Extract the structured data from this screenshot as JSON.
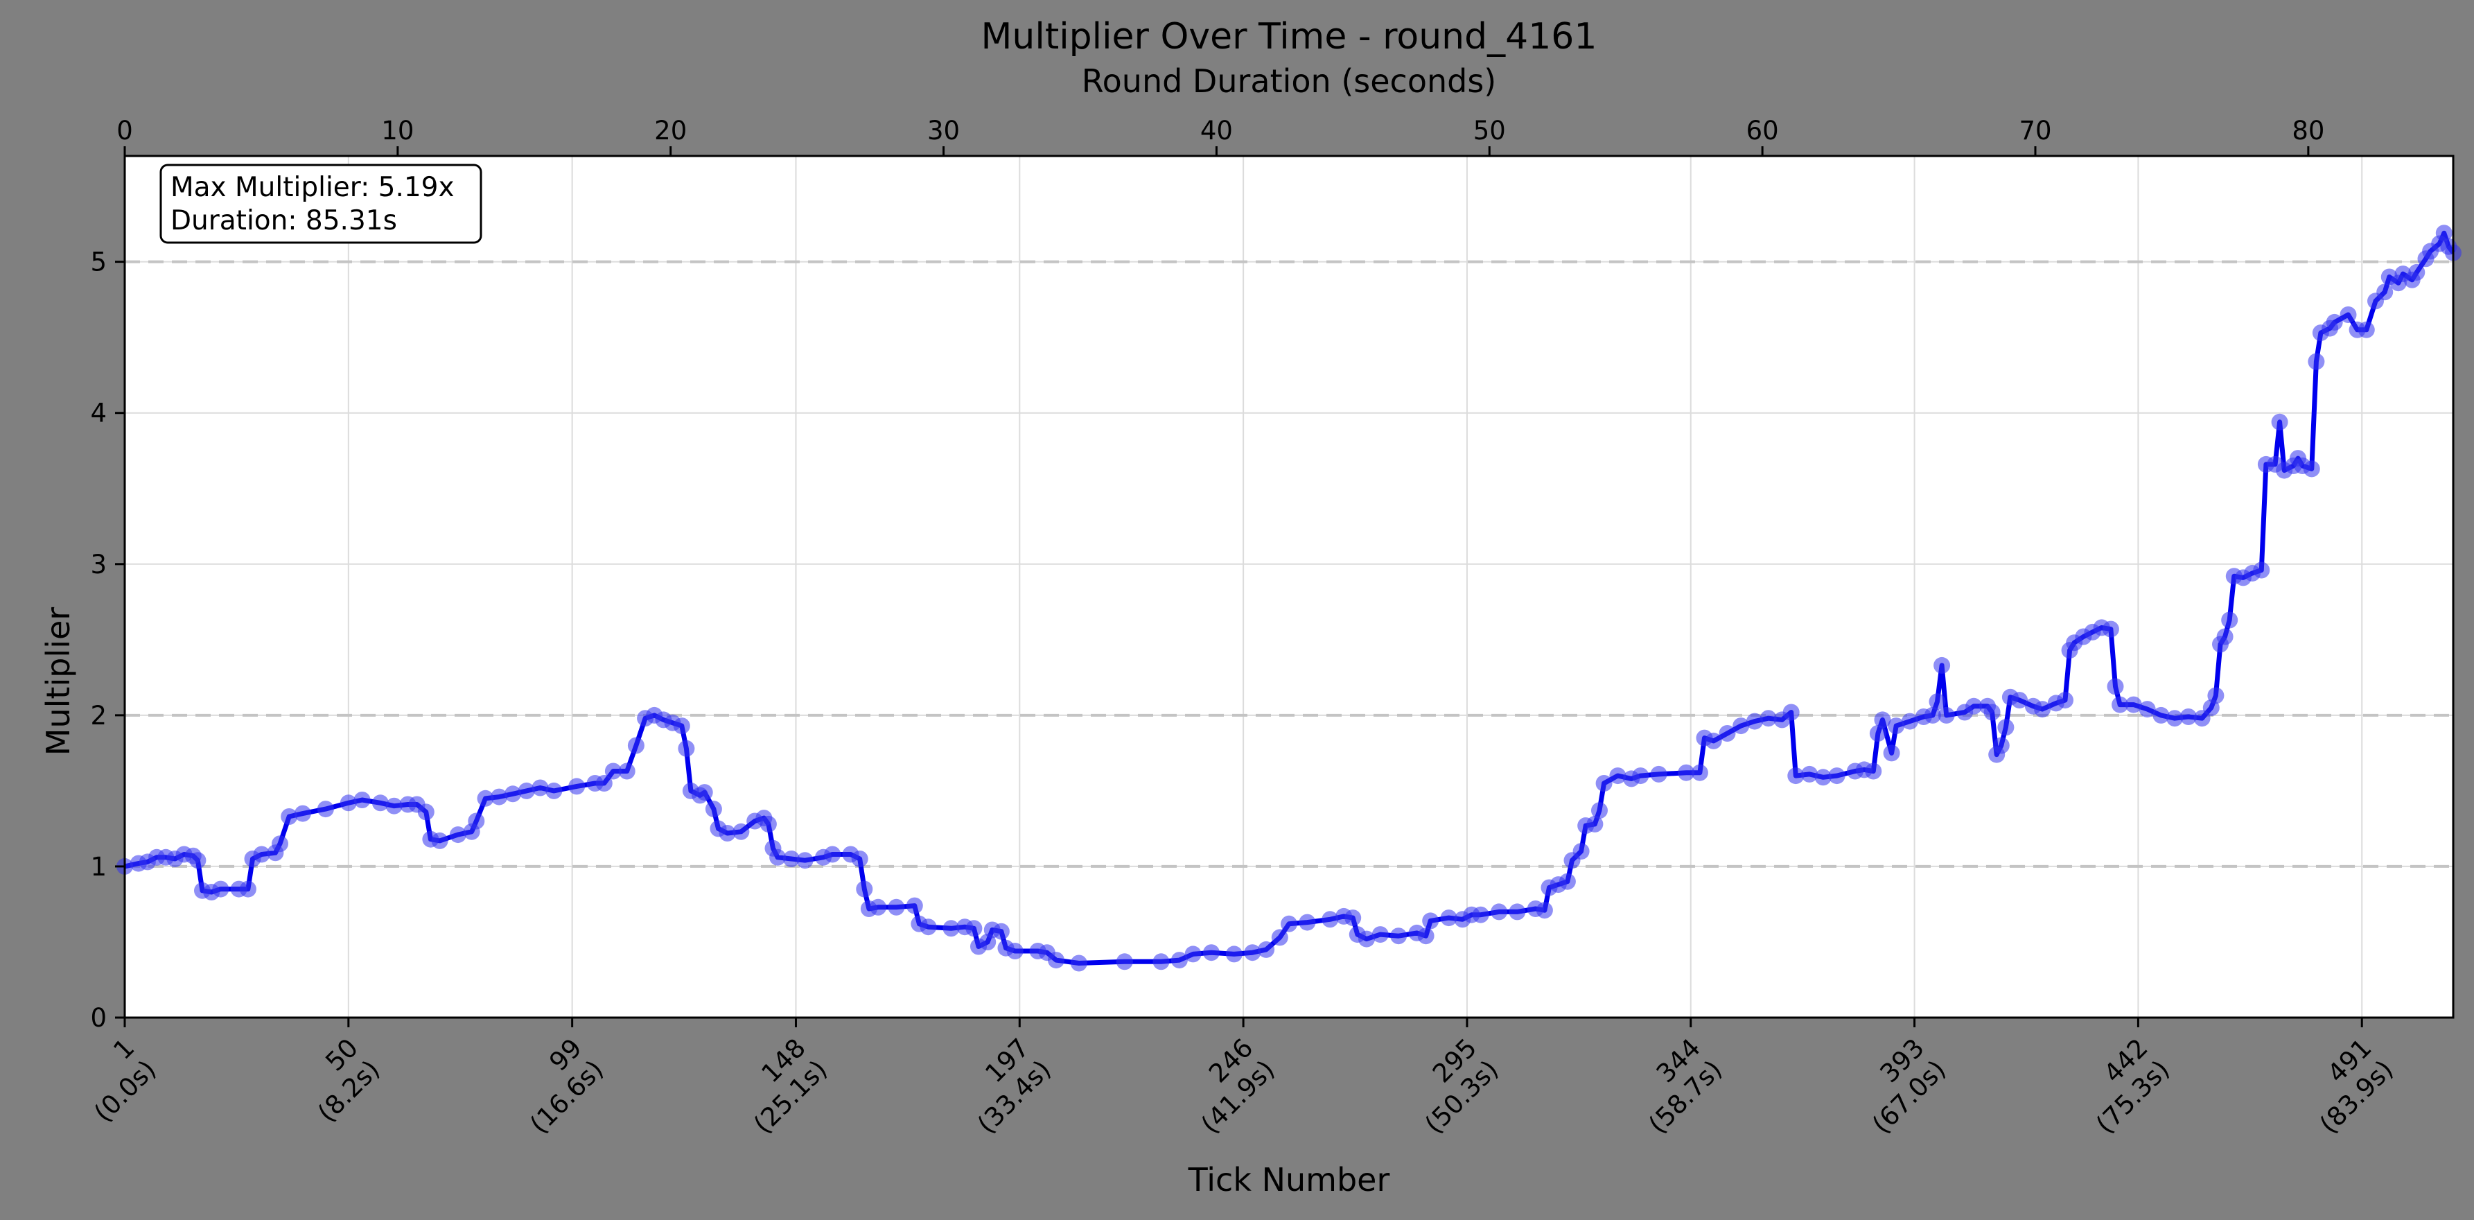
{
  "chart_data": {
    "type": "line",
    "title": "Multiplier Over Time - round_4161",
    "xlabel": "Tick Number",
    "ylabel": "Multiplier",
    "x2label": "Round Duration (seconds)",
    "xlim": [
      1,
      511
    ],
    "ylim": [
      0,
      5.7
    ],
    "x2lim": [
      0,
      85.31
    ],
    "x_ticks": [
      {
        "tick": 1,
        "label": "1",
        "sublabel": "(0.0s)"
      },
      {
        "tick": 50,
        "label": "50",
        "sublabel": "(8.2s)"
      },
      {
        "tick": 99,
        "label": "99",
        "sublabel": "(16.6s)"
      },
      {
        "tick": 148,
        "label": "148",
        "sublabel": "(25.1s)"
      },
      {
        "tick": 197,
        "label": "197",
        "sublabel": "(33.4s)"
      },
      {
        "tick": 246,
        "label": "246",
        "sublabel": "(41.9s)"
      },
      {
        "tick": 295,
        "label": "295",
        "sublabel": "(50.3s)"
      },
      {
        "tick": 344,
        "label": "344",
        "sublabel": "(58.7s)"
      },
      {
        "tick": 393,
        "label": "393",
        "sublabel": "(67.0s)"
      },
      {
        "tick": 442,
        "label": "442",
        "sublabel": "(75.3s)"
      },
      {
        "tick": 491,
        "label": "491",
        "sublabel": "(83.9s)"
      }
    ],
    "x2_ticks": [
      0,
      10,
      20,
      30,
      40,
      50,
      60,
      70,
      80
    ],
    "y_ticks": [
      0,
      1,
      2,
      3,
      4,
      5
    ],
    "reference_lines": [
      1,
      2,
      5
    ],
    "grid": true,
    "series": [
      {
        "color": "#0000ee",
        "points": [
          [
            1,
            1.0
          ],
          [
            4,
            1.02
          ],
          [
            6,
            1.03
          ],
          [
            8,
            1.06
          ],
          [
            10,
            1.06
          ],
          [
            12,
            1.05
          ],
          [
            14,
            1.08
          ],
          [
            16,
            1.07
          ],
          [
            17,
            1.04
          ],
          [
            18,
            0.84
          ],
          [
            20,
            0.83
          ],
          [
            22,
            0.85
          ],
          [
            26,
            0.85
          ],
          [
            28,
            0.85
          ],
          [
            29,
            1.05
          ],
          [
            31,
            1.08
          ],
          [
            34,
            1.09
          ],
          [
            35,
            1.15
          ],
          [
            37,
            1.33
          ],
          [
            40,
            1.35
          ],
          [
            45,
            1.38
          ],
          [
            50,
            1.42
          ],
          [
            53,
            1.44
          ],
          [
            57,
            1.42
          ],
          [
            60,
            1.4
          ],
          [
            63,
            1.41
          ],
          [
            65,
            1.41
          ],
          [
            67,
            1.36
          ],
          [
            68,
            1.18
          ],
          [
            70,
            1.17
          ],
          [
            74,
            1.21
          ],
          [
            77,
            1.23
          ],
          [
            78,
            1.3
          ],
          [
            80,
            1.45
          ],
          [
            83,
            1.46
          ],
          [
            86,
            1.48
          ],
          [
            89,
            1.5
          ],
          [
            92,
            1.52
          ],
          [
            95,
            1.5
          ],
          [
            100,
            1.53
          ],
          [
            104,
            1.55
          ],
          [
            106,
            1.55
          ],
          [
            108,
            1.63
          ],
          [
            111,
            1.63
          ],
          [
            113,
            1.8
          ],
          [
            115,
            1.98
          ],
          [
            117,
            2.0
          ],
          [
            119,
            1.97
          ],
          [
            121,
            1.95
          ],
          [
            123,
            1.93
          ],
          [
            124,
            1.78
          ],
          [
            125,
            1.5
          ],
          [
            127,
            1.47
          ],
          [
            128,
            1.49
          ],
          [
            130,
            1.38
          ],
          [
            131,
            1.25
          ],
          [
            133,
            1.22
          ],
          [
            136,
            1.23
          ],
          [
            139,
            1.3
          ],
          [
            141,
            1.32
          ],
          [
            142,
            1.28
          ],
          [
            143,
            1.12
          ],
          [
            144,
            1.06
          ],
          [
            147,
            1.05
          ],
          [
            150,
            1.04
          ],
          [
            154,
            1.06
          ],
          [
            156,
            1.08
          ],
          [
            160,
            1.08
          ],
          [
            162,
            1.05
          ],
          [
            163,
            0.85
          ],
          [
            164,
            0.72
          ],
          [
            166,
            0.73
          ],
          [
            170,
            0.73
          ],
          [
            174,
            0.74
          ],
          [
            175,
            0.62
          ],
          [
            177,
            0.6
          ],
          [
            182,
            0.59
          ],
          [
            185,
            0.6
          ],
          [
            187,
            0.59
          ],
          [
            188,
            0.47
          ],
          [
            190,
            0.5
          ],
          [
            191,
            0.58
          ],
          [
            193,
            0.57
          ],
          [
            194,
            0.46
          ],
          [
            196,
            0.44
          ],
          [
            201,
            0.44
          ],
          [
            203,
            0.43
          ],
          [
            205,
            0.38
          ],
          [
            210,
            0.36
          ],
          [
            220,
            0.37
          ],
          [
            228,
            0.37
          ],
          [
            232,
            0.38
          ],
          [
            235,
            0.42
          ],
          [
            239,
            0.43
          ],
          [
            244,
            0.42
          ],
          [
            248,
            0.43
          ],
          [
            251,
            0.45
          ],
          [
            254,
            0.53
          ],
          [
            256,
            0.62
          ],
          [
            260,
            0.63
          ],
          [
            265,
            0.65
          ],
          [
            268,
            0.67
          ],
          [
            270,
            0.66
          ],
          [
            271,
            0.55
          ],
          [
            273,
            0.52
          ],
          [
            276,
            0.55
          ],
          [
            280,
            0.54
          ],
          [
            284,
            0.56
          ],
          [
            286,
            0.54
          ],
          [
            287,
            0.64
          ],
          [
            291,
            0.66
          ],
          [
            294,
            0.65
          ],
          [
            296,
            0.68
          ],
          [
            298,
            0.68
          ],
          [
            302,
            0.7
          ],
          [
            306,
            0.7
          ],
          [
            310,
            0.72
          ],
          [
            312,
            0.71
          ],
          [
            313,
            0.86
          ],
          [
            315,
            0.88
          ],
          [
            317,
            0.9
          ],
          [
            318,
            1.04
          ],
          [
            320,
            1.1
          ],
          [
            321,
            1.27
          ],
          [
            323,
            1.28
          ],
          [
            324,
            1.37
          ],
          [
            325,
            1.55
          ],
          [
            328,
            1.6
          ],
          [
            331,
            1.58
          ],
          [
            333,
            1.6
          ],
          [
            337,
            1.61
          ],
          [
            343,
            1.62
          ],
          [
            346,
            1.62
          ],
          [
            347,
            1.85
          ],
          [
            349,
            1.83
          ],
          [
            352,
            1.88
          ],
          [
            355,
            1.93
          ],
          [
            358,
            1.96
          ],
          [
            361,
            1.98
          ],
          [
            364,
            1.97
          ],
          [
            366,
            2.02
          ],
          [
            367,
            1.6
          ],
          [
            370,
            1.61
          ],
          [
            373,
            1.59
          ],
          [
            376,
            1.6
          ],
          [
            380,
            1.63
          ],
          [
            382,
            1.64
          ],
          [
            384,
            1.63
          ],
          [
            385,
            1.88
          ],
          [
            386,
            1.97
          ],
          [
            388,
            1.75
          ],
          [
            389,
            1.93
          ],
          [
            392,
            1.96
          ],
          [
            395,
            1.99
          ],
          [
            397,
            2.0
          ],
          [
            398,
            2.09
          ],
          [
            399,
            2.33
          ],
          [
            400,
            2.0
          ],
          [
            404,
            2.02
          ],
          [
            406,
            2.06
          ],
          [
            409,
            2.06
          ],
          [
            410,
            2.02
          ],
          [
            411,
            1.74
          ],
          [
            412,
            1.8
          ],
          [
            413,
            1.92
          ],
          [
            414,
            2.12
          ],
          [
            416,
            2.1
          ],
          [
            419,
            2.06
          ],
          [
            421,
            2.04
          ],
          [
            424,
            2.08
          ],
          [
            426,
            2.1
          ],
          [
            427,
            2.43
          ],
          [
            428,
            2.48
          ],
          [
            430,
            2.52
          ],
          [
            432,
            2.55
          ],
          [
            434,
            2.58
          ],
          [
            436,
            2.57
          ],
          [
            437,
            2.19
          ],
          [
            438,
            2.07
          ],
          [
            441,
            2.07
          ],
          [
            444,
            2.04
          ],
          [
            447,
            2.0
          ],
          [
            450,
            1.98
          ],
          [
            453,
            1.99
          ],
          [
            456,
            1.98
          ],
          [
            458,
            2.05
          ],
          [
            459,
            2.13
          ],
          [
            460,
            2.47
          ],
          [
            461,
            2.52
          ],
          [
            462,
            2.63
          ],
          [
            463,
            2.92
          ],
          [
            465,
            2.91
          ],
          [
            467,
            2.94
          ],
          [
            469,
            2.96
          ],
          [
            470,
            3.66
          ],
          [
            472,
            3.66
          ],
          [
            473,
            3.94
          ],
          [
            474,
            3.62
          ],
          [
            476,
            3.65
          ],
          [
            477,
            3.7
          ],
          [
            478,
            3.65
          ],
          [
            480,
            3.63
          ],
          [
            481,
            4.34
          ],
          [
            482,
            4.53
          ],
          [
            484,
            4.56
          ],
          [
            485,
            4.6
          ],
          [
            488,
            4.65
          ],
          [
            490,
            4.55
          ],
          [
            492,
            4.55
          ],
          [
            494,
            4.74
          ],
          [
            496,
            4.8
          ],
          [
            497,
            4.9
          ],
          [
            499,
            4.86
          ],
          [
            500,
            4.92
          ],
          [
            502,
            4.88
          ],
          [
            503,
            4.93
          ],
          [
            505,
            5.02
          ],
          [
            506,
            5.07
          ],
          [
            508,
            5.12
          ],
          [
            509,
            5.19
          ],
          [
            510,
            5.1
          ],
          [
            511,
            5.06
          ]
        ]
      }
    ],
    "annotation": {
      "lines": [
        "Max Multiplier: 5.19x",
        "Duration: 85.31s"
      ],
      "placement": "top-left"
    }
  }
}
